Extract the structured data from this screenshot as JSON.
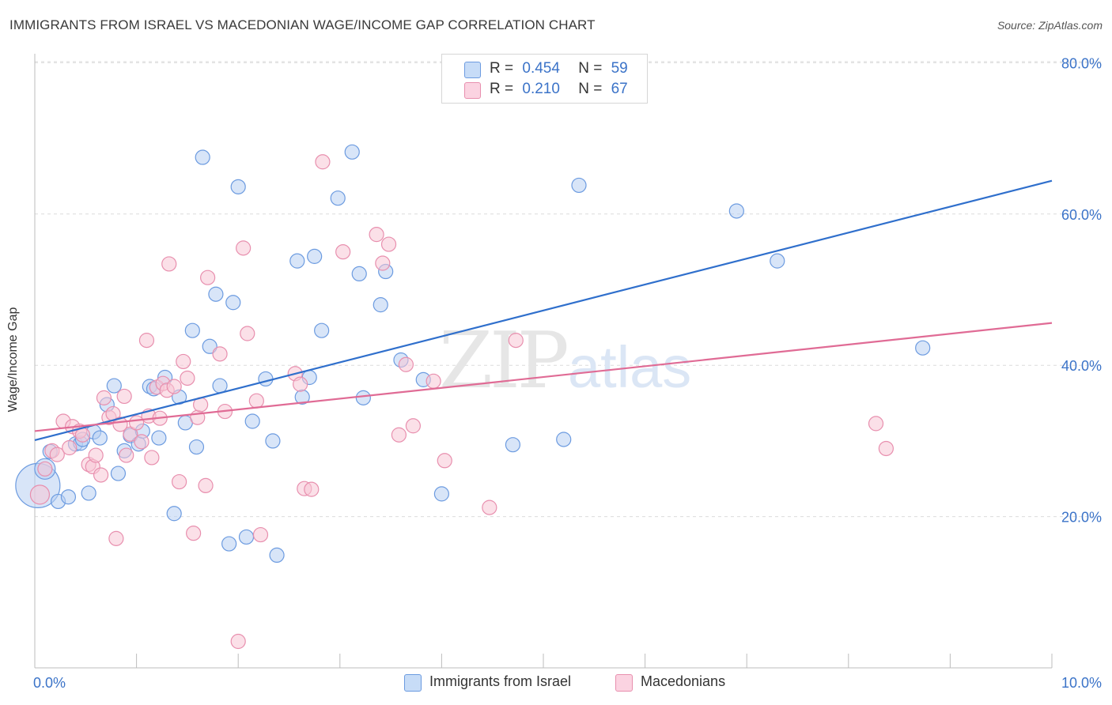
{
  "title": "IMMIGRANTS FROM ISRAEL VS MACEDONIAN WAGE/INCOME GAP CORRELATION CHART",
  "source": "Source: ZipAtlas.com",
  "watermark": {
    "zip": "ZIP",
    "atlas": "atlas"
  },
  "legend": {
    "rows": [
      {
        "r_label": "R =",
        "r_value": "0.454",
        "n_label": "N =",
        "n_value": "59"
      },
      {
        "r_label": "R =",
        "r_value": "0.210",
        "n_label": "N =",
        "n_value": "67"
      }
    ]
  },
  "colors": {
    "israel_fill": "#b8cff2",
    "israel_stroke": "#6c9be0",
    "israel_line": "#2f6fcc",
    "mac_fill": "#f8c6d6",
    "mac_stroke": "#e88fae",
    "mac_line": "#e06b95",
    "tick_label": "#3b73c8",
    "grid": "#dcdcdc"
  },
  "chart_data": {
    "type": "scatter",
    "xlabel": "",
    "ylabel": "Wage/Income Gap",
    "xlim": [
      0,
      10
    ],
    "ylim": [
      0,
      85
    ],
    "x_tick_labels": [
      {
        "value": 0,
        "label": "0.0%"
      },
      {
        "value": 10,
        "label": "10.0%"
      }
    ],
    "y_tick_labels": [
      {
        "value": 20,
        "label": "20.0%"
      },
      {
        "value": 40,
        "label": "40.0%"
      },
      {
        "value": 60,
        "label": "60.0%"
      },
      {
        "value": 80,
        "label": "80.0%"
      }
    ],
    "x_minor_ticks": [
      1,
      2,
      3,
      4,
      5,
      6,
      7,
      8,
      9,
      10
    ],
    "grid": true,
    "legend_position": "top-center",
    "series": [
      {
        "name": "Immigrants from Israel",
        "trend": {
          "x": [
            0,
            10
          ],
          "y": [
            30.1,
            64.4
          ]
        },
        "points": [
          [
            0.03,
            24.1,
            28
          ],
          [
            0.1,
            26.3,
            13
          ],
          [
            0.15,
            28.6,
            9
          ],
          [
            0.23,
            22.0,
            9
          ],
          [
            0.33,
            22.6,
            9
          ],
          [
            0.4,
            29.6,
            9
          ],
          [
            0.45,
            29.7,
            9
          ],
          [
            0.47,
            30.2,
            9
          ],
          [
            0.53,
            23.1,
            9
          ],
          [
            0.58,
            31.2,
            9
          ],
          [
            0.64,
            30.4,
            9
          ],
          [
            0.71,
            34.8,
            9
          ],
          [
            0.78,
            37.3,
            9
          ],
          [
            0.82,
            25.7,
            9
          ],
          [
            0.88,
            28.7,
            9
          ],
          [
            0.94,
            30.7,
            9
          ],
          [
            1.02,
            29.6,
            9
          ],
          [
            1.06,
            31.3,
            9
          ],
          [
            1.13,
            37.2,
            9
          ],
          [
            1.17,
            36.9,
            9
          ],
          [
            1.22,
            30.4,
            9
          ],
          [
            1.28,
            38.4,
            9
          ],
          [
            1.37,
            20.4,
            9
          ],
          [
            1.42,
            35.8,
            9
          ],
          [
            1.48,
            32.4,
            9
          ],
          [
            1.55,
            44.6,
            9
          ],
          [
            1.59,
            29.2,
            9
          ],
          [
            1.65,
            67.5,
            9
          ],
          [
            1.72,
            42.5,
            9
          ],
          [
            1.78,
            49.4,
            9
          ],
          [
            1.82,
            37.3,
            9
          ],
          [
            1.91,
            16.4,
            9
          ],
          [
            1.95,
            48.3,
            9
          ],
          [
            2.0,
            63.6,
            9
          ],
          [
            2.08,
            17.3,
            9
          ],
          [
            2.14,
            32.6,
            9
          ],
          [
            2.27,
            38.2,
            9
          ],
          [
            2.34,
            30.0,
            9
          ],
          [
            2.38,
            14.9,
            9
          ],
          [
            2.58,
            53.8,
            9
          ],
          [
            2.63,
            35.8,
            9
          ],
          [
            2.7,
            38.4,
            9
          ],
          [
            2.75,
            54.4,
            9
          ],
          [
            2.82,
            44.6,
            9
          ],
          [
            2.98,
            62.1,
            9
          ],
          [
            3.12,
            68.2,
            9
          ],
          [
            3.19,
            52.1,
            9
          ],
          [
            3.23,
            35.7,
            9
          ],
          [
            3.4,
            48.0,
            9
          ],
          [
            3.45,
            52.4,
            9
          ],
          [
            3.6,
            40.7,
            9
          ],
          [
            3.82,
            38.1,
            9
          ],
          [
            4.0,
            23.0,
            9
          ],
          [
            4.7,
            29.5,
            9
          ],
          [
            5.2,
            30.2,
            9
          ],
          [
            5.35,
            63.8,
            9
          ],
          [
            6.9,
            60.4,
            9
          ],
          [
            8.73,
            42.3,
            9
          ],
          [
            7.3,
            53.8,
            9
          ]
        ]
      },
      {
        "name": "Macedonians",
        "trend": {
          "x": [
            0,
            10
          ],
          "y": [
            31.3,
            45.6
          ]
        },
        "points": [
          [
            0.05,
            22.9,
            12
          ],
          [
            0.1,
            26.3,
            9
          ],
          [
            0.17,
            28.7,
            9
          ],
          [
            0.22,
            28.2,
            9
          ],
          [
            0.28,
            32.6,
            9
          ],
          [
            0.34,
            29.1,
            9
          ],
          [
            0.37,
            31.9,
            9
          ],
          [
            0.44,
            31.3,
            9
          ],
          [
            0.47,
            30.8,
            9
          ],
          [
            0.53,
            26.9,
            9
          ],
          [
            0.57,
            26.6,
            9
          ],
          [
            0.6,
            28.1,
            9
          ],
          [
            0.65,
            25.5,
            9
          ],
          [
            0.68,
            35.7,
            9
          ],
          [
            0.73,
            33.1,
            9
          ],
          [
            0.77,
            33.6,
            9
          ],
          [
            0.8,
            17.1,
            9
          ],
          [
            0.84,
            32.2,
            9
          ],
          [
            0.88,
            35.9,
            9
          ],
          [
            0.9,
            28.1,
            9
          ],
          [
            0.94,
            30.9,
            9
          ],
          [
            1.0,
            32.4,
            9
          ],
          [
            1.05,
            29.9,
            9
          ],
          [
            1.1,
            43.3,
            9
          ],
          [
            1.12,
            33.3,
            9
          ],
          [
            1.15,
            27.8,
            9
          ],
          [
            1.2,
            37.1,
            9
          ],
          [
            1.23,
            33.0,
            9
          ],
          [
            1.26,
            37.6,
            9
          ],
          [
            1.3,
            36.7,
            9
          ],
          [
            1.32,
            53.4,
            9
          ],
          [
            1.37,
            37.2,
            9
          ],
          [
            1.42,
            24.6,
            9
          ],
          [
            1.46,
            40.5,
            9
          ],
          [
            1.5,
            38.3,
            9
          ],
          [
            1.56,
            17.8,
            9
          ],
          [
            1.6,
            33.1,
            9
          ],
          [
            1.63,
            34.8,
            9
          ],
          [
            1.68,
            24.1,
            9
          ],
          [
            1.7,
            51.6,
            9
          ],
          [
            1.82,
            41.5,
            9
          ],
          [
            1.87,
            33.9,
            9
          ],
          [
            2.0,
            3.5,
            9
          ],
          [
            2.05,
            55.5,
            9
          ],
          [
            2.09,
            44.2,
            9
          ],
          [
            2.18,
            35.3,
            9
          ],
          [
            2.22,
            17.6,
            9
          ],
          [
            2.56,
            38.9,
            9
          ],
          [
            2.61,
            37.5,
            9
          ],
          [
            2.65,
            23.7,
            9
          ],
          [
            2.72,
            23.6,
            9
          ],
          [
            2.83,
            66.9,
            9
          ],
          [
            3.03,
            55.0,
            9
          ],
          [
            3.36,
            57.3,
            9
          ],
          [
            3.42,
            53.5,
            9
          ],
          [
            3.48,
            56.0,
            9
          ],
          [
            3.58,
            30.8,
            9
          ],
          [
            3.65,
            40.1,
            9
          ],
          [
            3.72,
            32.0,
            9
          ],
          [
            3.92,
            37.9,
            9
          ],
          [
            4.03,
            27.4,
            9
          ],
          [
            4.47,
            21.2,
            9
          ],
          [
            4.73,
            43.3,
            9
          ],
          [
            8.27,
            32.3,
            9
          ],
          [
            8.37,
            29.0,
            9
          ],
          [
            1.95,
            57.8,
            0
          ],
          [
            0.1,
            29.5,
            0
          ]
        ]
      }
    ]
  },
  "bottom_legend": [
    {
      "label": "Immigrants from Israel"
    },
    {
      "label": "Macedonians"
    }
  ]
}
